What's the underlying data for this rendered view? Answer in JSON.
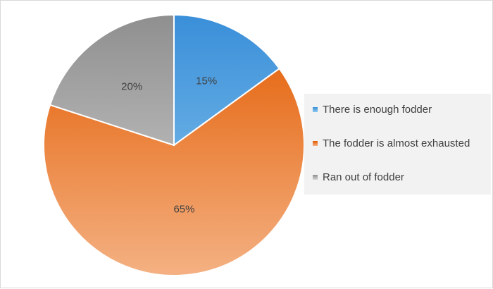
{
  "chart_data": {
    "type": "pie",
    "title": "",
    "slices": [
      {
        "label": "There is enough fodder",
        "value": 15,
        "data_label": "15%",
        "color": "#3a8fd9",
        "color_light": "#8cc8ee"
      },
      {
        "label": "The fodder is almost exhausted",
        "value": 65,
        "data_label": "65%",
        "color": "#e35b00",
        "color_light": "#f4b183"
      },
      {
        "label": "Ran out of fodder",
        "value": 20,
        "data_label": "20%",
        "color": "#8f8f8f",
        "color_light": "#d4d4d4"
      }
    ],
    "legend_position": "right",
    "start_angle": "12 o'clock, clockwise"
  }
}
